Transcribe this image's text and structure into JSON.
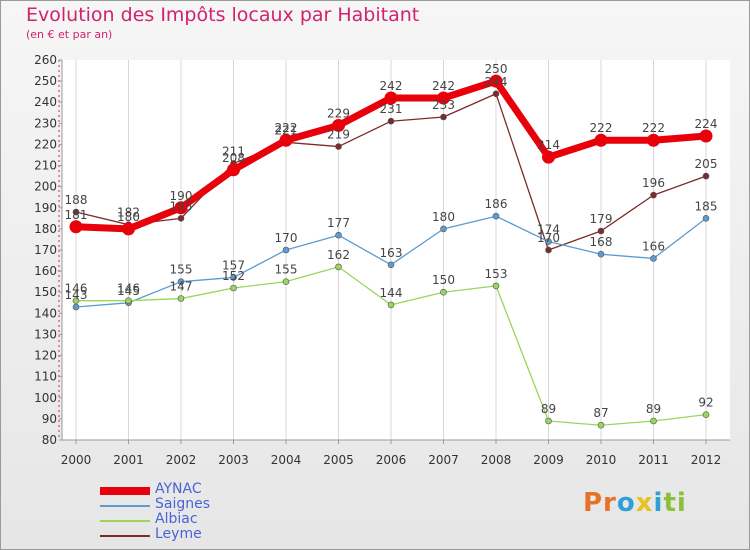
{
  "header": {
    "title": "Evolution des Impôts locaux par Habitant",
    "subtitle": "(en € et par an)"
  },
  "brand": {
    "logo_parts": [
      "Pr",
      "o",
      "x",
      "i",
      "ti"
    ],
    "logo_colors": [
      "#e8712a",
      "#2f9fd6",
      "#e8c21e",
      "#2f9fd6",
      "#8cbf3c"
    ]
  },
  "chart_data": {
    "type": "line",
    "title": "Evolution des Impôts locaux par Habitant",
    "subtitle": "(en € et par an)",
    "xlabel": "",
    "ylabel": "",
    "ylim": [
      80,
      260
    ],
    "ytick_step": 10,
    "grid": "vertical",
    "categories": [
      "2000",
      "2001",
      "2002",
      "2003",
      "2004",
      "2005",
      "2006",
      "2007",
      "2008",
      "2009",
      "2010",
      "2011",
      "2012"
    ],
    "series": [
      {
        "name": "AYNAC",
        "color": "#e8000b",
        "values": [
          181,
          180,
          190,
          208,
          222,
          229,
          242,
          242,
          250,
          214,
          222,
          222,
          224
        ]
      },
      {
        "name": "Saignes",
        "color": "#5d9bd1",
        "values": [
          143,
          145,
          155,
          157,
          170,
          177,
          163,
          180,
          186,
          174,
          168,
          166,
          185
        ]
      },
      {
        "name": "Albiac",
        "color": "#99d65b",
        "values": [
          146,
          146,
          147,
          152,
          155,
          162,
          144,
          150,
          153,
          89,
          87,
          89,
          92
        ]
      },
      {
        "name": "Leyme",
        "color": "#7b2b2b",
        "values": [
          188,
          182,
          185,
          211,
          221,
          219,
          231,
          233,
          244,
          170,
          179,
          196,
          205
        ]
      }
    ]
  }
}
